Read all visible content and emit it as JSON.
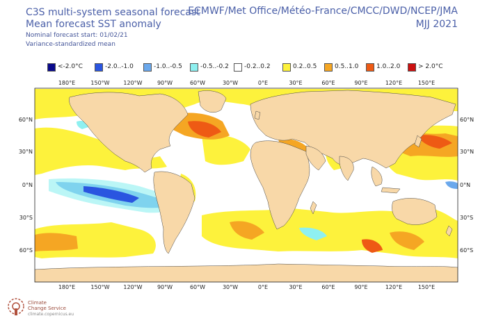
{
  "header": {
    "title_line1": "C3S multi-system seasonal forecast",
    "title_line2": "Mean forecast SST anomaly",
    "start_line": "Nominal forecast start: 01/02/21",
    "method_line": "Variance-standardized mean",
    "centers": "ECMWF/Met Office/Météo-France/CMCC/DWD/NCEP/JMA",
    "season": "MJJ 2021"
  },
  "legend": [
    {
      "label": "<-2.0°C",
      "color": "#0a0a8c"
    },
    {
      "label": "-2.0..-1.0",
      "color": "#2a55e0"
    },
    {
      "label": "-1.0..-0.5",
      "color": "#6aa8ec"
    },
    {
      "label": "-0.5..-0.2",
      "color": "#8ef0f0"
    },
    {
      "label": "-0.2..0.2",
      "color": "#ffffff"
    },
    {
      "label": "0.2..0.5",
      "color": "#fdf23c"
    },
    {
      "label": "0.5..1.0",
      "color": "#f5a623"
    },
    {
      "label": "1.0..2.0",
      "color": "#ee5a14"
    },
    {
      "label": "> 2.0°C",
      "color": "#cc1010"
    }
  ],
  "map": {
    "land_color": "#f8d8a8",
    "ocean_color": "#ffffff",
    "x_ticks": [
      "180°E",
      "150°W",
      "120°W",
      "90°W",
      "60°W",
      "30°W",
      "0°E",
      "30°E",
      "60°E",
      "90°E",
      "120°E",
      "150°E"
    ],
    "y_ticks": [
      "60°N",
      "30°N",
      "0°N",
      "30°S",
      "60°S"
    ]
  },
  "footer": {
    "logo_line1": "Climate",
    "logo_line2": "Change Service",
    "url": "climate.copernicus.eu"
  }
}
